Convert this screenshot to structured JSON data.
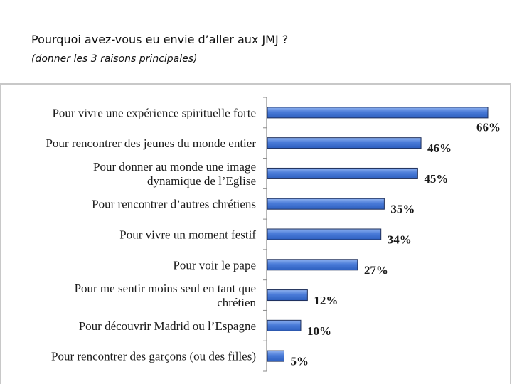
{
  "slide": {
    "title": "Pourquoi avez-vous eu envie d’aller aux JMJ ?",
    "subtitle": "(donner les 3 raisons principales)"
  },
  "chart_data": {
    "type": "bar",
    "orientation": "horizontal",
    "title": "",
    "xlabel": "",
    "ylabel": "",
    "xlim": [
      0,
      70
    ],
    "grid": false,
    "bar_color": "#4a7bd8",
    "categories": [
      [
        "Pour vivre une expérience spirituelle forte"
      ],
      [
        "Pour rencontrer des jeunes du monde entier"
      ],
      [
        "Pour donner au monde une image",
        "dynamique de l’Eglise"
      ],
      [
        "Pour rencontrer d’autres chrétiens"
      ],
      [
        "Pour vivre un moment festif"
      ],
      [
        "Pour voir le pape"
      ],
      [
        "Pour me sentir moins seul en tant que",
        "chrétien"
      ],
      [
        "Pour découvrir Madrid ou l’Espagne"
      ],
      [
        "Pour rencontrer des garçons (ou des filles)"
      ]
    ],
    "values": [
      66,
      46,
      45,
      35,
      34,
      27,
      12,
      10,
      5
    ],
    "value_labels": [
      "66%",
      "46%",
      "45%",
      "35%",
      "34%",
      "27%",
      "12%",
      "10%",
      "5%"
    ]
  }
}
